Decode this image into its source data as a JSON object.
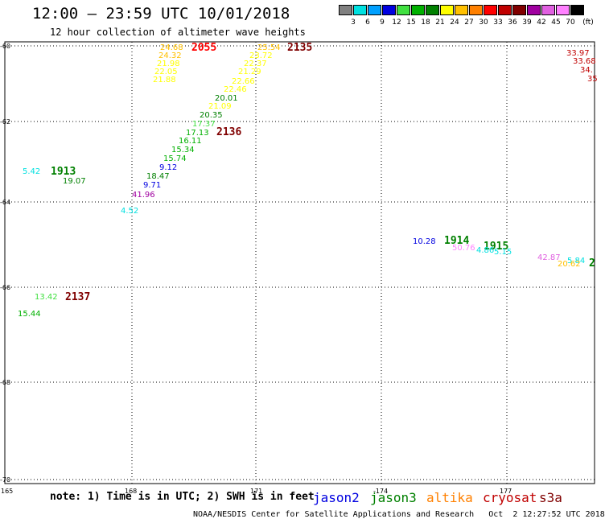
{
  "title": "12:00 — 23:59 UTC 10/01/2018",
  "subtitle": "12 hour collection of altimeter wave heights",
  "legend": {
    "unit": "(ft)",
    "colors": [
      "#808080",
      "#00e0e0",
      "#00a0ff",
      "#0000e0",
      "#40e040",
      "#00b000",
      "#008000",
      "#ffff00",
      "#ffc000",
      "#ff8000",
      "#ff0000",
      "#c00000",
      "#800000",
      "#a000a0",
      "#e060e0",
      "#ff80ff",
      "#000000"
    ],
    "labels": [
      "3",
      "6",
      "9",
      "12",
      "15",
      "18",
      "21",
      "24",
      "27",
      "30",
      "33",
      "36",
      "39",
      "42",
      "45",
      "70"
    ]
  },
  "lat_labels": [
    "-60",
    "-62",
    "-64",
    "-66",
    "-68",
    "-70"
  ],
  "lon_labels": [
    "165",
    "168",
    "171",
    "-174",
    "177"
  ],
  "map_labels": [
    {
      "t": "24.68",
      "c": "#ffc000",
      "a": 199,
      "b": 62
    },
    {
      "t": "2055",
      "c": "#ff0000",
      "a": 238,
      "b": 63,
      "big": true
    },
    {
      "t": "24.32",
      "c": "#ffc000",
      "a": 197,
      "b": 72
    },
    {
      "t": "21.98",
      "c": "#ffff00",
      "a": 195,
      "b": 82
    },
    {
      "t": "22.05",
      "c": "#ffff00",
      "a": 192,
      "b": 92
    },
    {
      "t": "21.88",
      "c": "#ffff00",
      "a": 190,
      "b": 102
    },
    {
      "t": "25.54",
      "c": "#ffc000",
      "a": 320,
      "b": 62
    },
    {
      "t": "2135",
      "c": "#800000",
      "a": 357,
      "b": 63,
      "big": true
    },
    {
      "t": "23.72",
      "c": "#ffff00",
      "a": 310,
      "b": 72
    },
    {
      "t": "22.37",
      "c": "#ffff00",
      "a": 303,
      "b": 82
    },
    {
      "t": "21.29",
      "c": "#ffff00",
      "a": 296,
      "b": 92
    },
    {
      "t": "22.66",
      "c": "#ffff00",
      "a": 288,
      "b": 104
    },
    {
      "t": "22.46",
      "c": "#ffff00",
      "a": 278,
      "b": 114
    },
    {
      "t": "20.01",
      "c": "#008000",
      "a": 267,
      "b": 125
    },
    {
      "t": "21.09",
      "c": "#ffff00",
      "a": 259,
      "b": 135
    },
    {
      "t": "20.35",
      "c": "#008000",
      "a": 248,
      "b": 146
    },
    {
      "t": "17.37",
      "c": "#40e040",
      "a": 239,
      "b": 157
    },
    {
      "t": "17.13",
      "c": "#00b000",
      "a": 231,
      "b": 168
    },
    {
      "t": "2136",
      "c": "#800000",
      "a": 269,
      "b": 168,
      "big": true
    },
    {
      "t": "16.11",
      "c": "#00b000",
      "a": 222,
      "b": 178
    },
    {
      "t": "15.34",
      "c": "#00b000",
      "a": 213,
      "b": 189
    },
    {
      "t": "15.74",
      "c": "#00b000",
      "a": 203,
      "b": 200
    },
    {
      "t": "9.12",
      "c": "#0000e0",
      "a": 198,
      "b": 211
    },
    {
      "t": "18.47",
      "c": "#008000",
      "a": 182,
      "b": 222
    },
    {
      "t": "9.71",
      "c": "#0000e0",
      "a": 178,
      "b": 233
    },
    {
      "t": "41.96",
      "c": "#a000a0",
      "a": 164,
      "b": 245
    },
    {
      "t": "4.52",
      "c": "#00e0e0",
      "a": 150,
      "b": 265
    },
    {
      "t": "5.42",
      "c": "#00e0e0",
      "a": 28,
      "b": 216
    },
    {
      "t": "1913",
      "c": "#008000",
      "a": 63,
      "b": 217,
      "big": true
    },
    {
      "t": "19.07",
      "c": "#008000",
      "a": 78,
      "b": 228
    },
    {
      "t": "13.42",
      "c": "#40e040",
      "a": 43,
      "b": 372
    },
    {
      "t": "2137",
      "c": "#800000",
      "a": 81,
      "b": 373,
      "big": true
    },
    {
      "t": "15.44",
      "c": "#00b000",
      "a": 22,
      "b": 393
    },
    {
      "t": "10.28",
      "c": "#0000e0",
      "a": 513,
      "b": 303
    },
    {
      "t": "1914",
      "c": "#008000",
      "a": 552,
      "b": 303,
      "big": true
    },
    {
      "t": "50.76",
      "c": "#ff80ff",
      "a": 562,
      "b": 311
    },
    {
      "t": "1915",
      "c": "#008000",
      "a": 601,
      "b": 310,
      "big": true
    },
    {
      "t": "4.86",
      "c": "#00e0e0",
      "a": 592,
      "b": 314
    },
    {
      "t": "5.15",
      "c": "#00e0e0",
      "a": 614,
      "b": 316
    },
    {
      "t": "42.87",
      "c": "#e060e0",
      "a": 668,
      "b": 323
    },
    {
      "t": "5.84",
      "c": "#00e0e0",
      "a": 705,
      "b": 327
    },
    {
      "t": "20.62",
      "c": "#ffc000",
      "a": 693,
      "b": 331
    },
    {
      "t": "2",
      "c": "#008000",
      "a": 732,
      "b": 331,
      "big": true
    },
    {
      "t": "33.97",
      "c": "#c00000",
      "a": 704,
      "b": 69
    },
    {
      "t": "33.68",
      "c": "#c00000",
      "a": 712,
      "b": 79
    },
    {
      "t": "34.",
      "c": "#c00000",
      "a": 721,
      "b": 90
    },
    {
      "t": "35",
      "c": "#c00000",
      "a": 730,
      "b": 101
    }
  ],
  "note": "note: 1) Time is in UTC; 2) SWH is in feet",
  "satellites": [
    {
      "name": "jason2",
      "color": "#0000e0"
    },
    {
      "name": "jason3",
      "color": "#008000"
    },
    {
      "name": "altika",
      "color": "#ff8000"
    },
    {
      "name": "cryosat",
      "color": "#c00000"
    },
    {
      "name": "s3a",
      "color": "#800000"
    }
  ],
  "footer": "NOAA/NESDIS Center for Satellite Applications and Research   Oct  2 12:27:52 UTC 2018"
}
